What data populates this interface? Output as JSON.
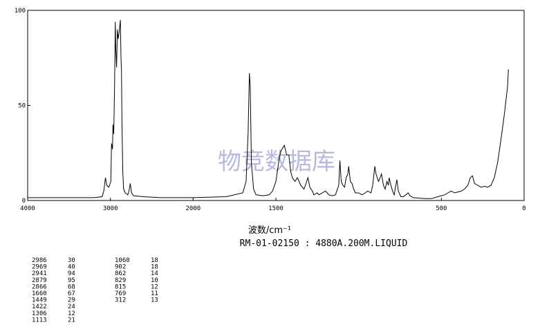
{
  "chart_data": {
    "type": "line",
    "xlabel": "波数/cm⁻¹",
    "subtitle": "RM-01-02150 : 4880A.200M.LIQUID",
    "watermark": "物竞数据库",
    "xlim": [
      4000,
      0
    ],
    "xticks": [
      4000,
      3000,
      2000,
      1500,
      500,
      0
    ],
    "xscale": {
      "break": 2000,
      "ratio": 2
    },
    "ylim": [
      0,
      100
    ],
    "yticks": [
      0,
      50,
      100
    ],
    "color": "#000000",
    "x": [
      4000,
      3200,
      3100,
      3080,
      3060,
      3045,
      3020,
      2995,
      2986,
      2975,
      2969,
      2960,
      2950,
      2941,
      2935,
      2925,
      2915,
      2905,
      2895,
      2879,
      2872,
      2866,
      2860,
      2850,
      2840,
      2820,
      2790,
      2775,
      2760,
      2745,
      2720,
      2600,
      2400,
      2000,
      1800,
      1700,
      1680,
      1668,
      1660,
      1655,
      1648,
      1635,
      1620,
      1580,
      1540,
      1520,
      1500,
      1480,
      1470,
      1449,
      1435,
      1422,
      1410,
      1400,
      1385,
      1370,
      1350,
      1330,
      1306,
      1295,
      1280,
      1270,
      1250,
      1240,
      1220,
      1200,
      1180,
      1160,
      1140,
      1120,
      1113,
      1105,
      1095,
      1085,
      1075,
      1065,
      1060,
      1050,
      1040,
      1030,
      1020,
      1000,
      980,
      960,
      945,
      925,
      915,
      902,
      895,
      880,
      870,
      862,
      850,
      840,
      829,
      820,
      815,
      805,
      795,
      785,
      775,
      769,
      760,
      745,
      730,
      715,
      700,
      690,
      670,
      600,
      560,
      520,
      500,
      480,
      460,
      440,
      420,
      400,
      380,
      360,
      340,
      325,
      312,
      300,
      280,
      260,
      240,
      220,
      200,
      180,
      160,
      140,
      120,
      100,
      95
    ],
    "values": [
      1.5,
      1.5,
      2,
      5,
      12,
      8,
      7,
      10,
      30,
      27,
      40,
      35,
      60,
      94,
      80,
      70,
      90,
      85,
      88,
      95,
      75,
      68,
      40,
      15,
      6,
      4,
      3,
      5,
      9,
      4,
      2.5,
      2,
      1.5,
      1.5,
      2,
      4,
      10,
      35,
      67,
      60,
      20,
      6,
      3,
      2.5,
      3,
      5,
      10,
      22,
      26,
      29,
      24,
      24,
      15,
      12,
      10,
      12,
      8,
      6,
      12,
      7,
      5,
      3,
      4,
      3,
      4,
      5,
      3,
      2.5,
      3,
      8,
      21,
      10,
      8,
      7,
      12,
      14,
      18,
      10,
      9,
      6,
      4,
      4,
      3,
      4,
      5,
      4,
      8,
      18,
      14,
      10,
      12,
      14,
      8,
      6,
      10,
      8,
      12,
      8,
      5,
      3,
      8,
      11,
      5,
      2,
      2,
      3,
      4,
      2.5,
      1.5,
      1,
      1,
      2,
      2.5,
      3,
      4,
      5,
      4,
      4.5,
      5,
      6,
      8,
      12,
      13,
      9,
      8,
      7,
      7.5,
      7,
      8,
      12,
      20,
      32,
      45,
      60,
      69
    ],
    "peaks": [
      [
        2986,
        30
      ],
      [
        2969,
        40
      ],
      [
        2941,
        94
      ],
      [
        2879,
        95
      ],
      [
        2866,
        68
      ],
      [
        1660,
        67
      ],
      [
        1449,
        29
      ],
      [
        1422,
        24
      ],
      [
        1306,
        12
      ],
      [
        1113,
        21
      ],
      [
        1060,
        18
      ],
      [
        902,
        18
      ],
      [
        862,
        14
      ],
      [
        829,
        10
      ],
      [
        815,
        12
      ],
      [
        769,
        11
      ],
      [
        312,
        13
      ]
    ]
  }
}
